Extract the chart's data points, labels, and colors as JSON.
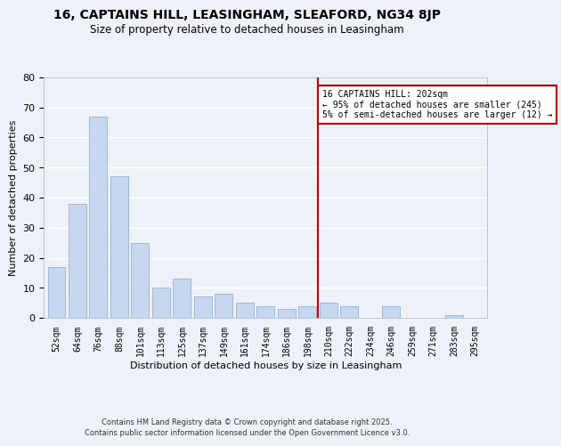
{
  "title": "16, CAPTAINS HILL, LEASINGHAM, SLEAFORD, NG34 8JP",
  "subtitle": "Size of property relative to detached houses in Leasingham",
  "xlabel": "Distribution of detached houses by size in Leasingham",
  "ylabel": "Number of detached properties",
  "bar_labels": [
    "52sqm",
    "64sqm",
    "76sqm",
    "88sqm",
    "101sqm",
    "113sqm",
    "125sqm",
    "137sqm",
    "149sqm",
    "161sqm",
    "174sqm",
    "186sqm",
    "198sqm",
    "210sqm",
    "222sqm",
    "234sqm",
    "246sqm",
    "259sqm",
    "271sqm",
    "283sqm",
    "295sqm"
  ],
  "bar_values": [
    17,
    38,
    67,
    47,
    25,
    10,
    13,
    7,
    8,
    5,
    4,
    3,
    4,
    5,
    4,
    0,
    4,
    0,
    0,
    1,
    0
  ],
  "bar_color": "#c5d8f0",
  "bar_edge_color": "#a0b8d8",
  "vline_index": 12.5,
  "vline_color": "#cc0000",
  "annotation_text": "16 CAPTAINS HILL: 202sqm\n← 95% of detached houses are smaller (245)\n5% of semi-detached houses are larger (12) →",
  "annotation_box_color": "#ffffff",
  "annotation_box_edge": "#cc0000",
  "ylim": [
    0,
    80
  ],
  "yticks": [
    0,
    10,
    20,
    30,
    40,
    50,
    60,
    70,
    80
  ],
  "background_color": "#eef2f8",
  "grid_color": "#ffffff",
  "footer_line1": "Contains HM Land Registry data © Crown copyright and database right 2025.",
  "footer_line2": "Contains public sector information licensed under the Open Government Licence v3.0."
}
